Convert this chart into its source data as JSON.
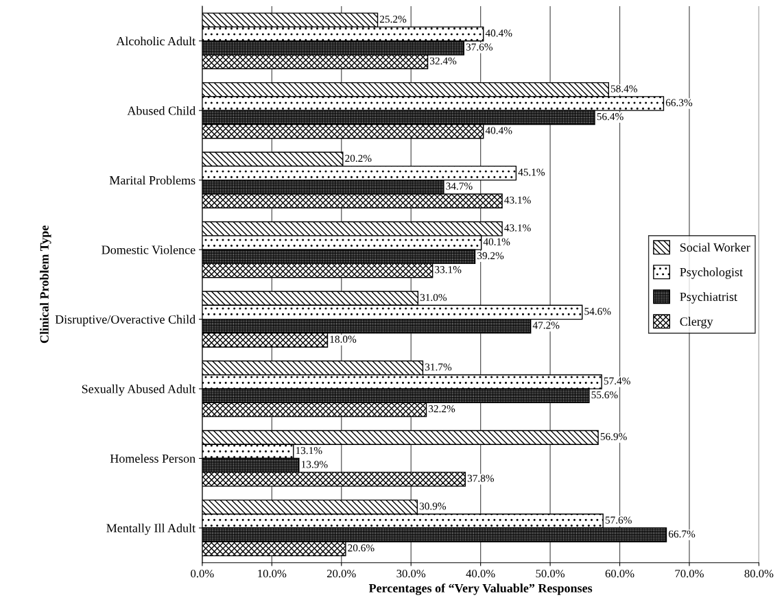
{
  "chart_data": {
    "type": "bar",
    "orientation": "horizontal",
    "xlabel": "Percentages of “Very Valuable” Responses",
    "ylabel": "Clinical Problem Type",
    "categories": [
      "Alcoholic Adult",
      "Abused Child",
      "Marital Problems",
      "Domestic Violence",
      "Disruptive/Overactive Child",
      "Sexually Abused Adult",
      "Homeless Person",
      "Mentally Ill Adult"
    ],
    "series": [
      {
        "name": "Social Worker",
        "color": "#000000",
        "values": [
          25.2,
          58.4,
          20.2,
          43.1,
          31.0,
          31.7,
          56.9,
          30.9
        ],
        "value_labels": [
          "25.2%",
          "58.4%",
          "20.2%",
          "43.1%",
          "31.0%",
          "31.7%",
          "56.9%",
          "30.9%"
        ]
      },
      {
        "name": "Psychologist",
        "color": "#000000",
        "values": [
          40.4,
          66.3,
          45.1,
          40.1,
          54.6,
          57.4,
          13.1,
          57.6
        ],
        "value_labels": [
          "40.4%",
          "66.3%",
          "45.1%",
          "40.1%",
          "54.6%",
          "57.4%",
          "13.1%",
          "57.6%"
        ]
      },
      {
        "name": "Psychiatrist",
        "color": "#000000",
        "values": [
          37.6,
          56.4,
          34.7,
          39.2,
          47.2,
          55.6,
          13.9,
          66.7
        ],
        "value_labels": [
          "37.6%",
          "56.4%",
          "34.7%",
          "39.2%",
          "47.2%",
          "55.6%",
          "13.9%",
          "66.7%"
        ]
      },
      {
        "name": "Clergy",
        "color": "#000000",
        "values": [
          32.4,
          40.4,
          43.1,
          33.1,
          18.0,
          32.2,
          37.8,
          20.6
        ],
        "value_labels": [
          "32.4%",
          "40.4%",
          "43.1%",
          "33.1%",
          "18.0%",
          "32.2%",
          "37.8%",
          "20.6%"
        ]
      }
    ],
    "xlim": [
      0,
      80
    ],
    "xticks": [
      {
        "value": 0,
        "label": "0.0%"
      },
      {
        "value": 10,
        "label": "10.0%"
      },
      {
        "value": 20,
        "label": "20.0%"
      },
      {
        "value": 30,
        "label": "30.0%"
      },
      {
        "value": 40,
        "label": "40.0%"
      },
      {
        "value": 50,
        "label": "50.0%"
      },
      {
        "value": 60,
        "label": "60.0%"
      },
      {
        "value": 70,
        "label": "70.0%"
      },
      {
        "value": 80,
        "label": "80.0%"
      }
    ],
    "grid": "x",
    "legend": "right"
  }
}
